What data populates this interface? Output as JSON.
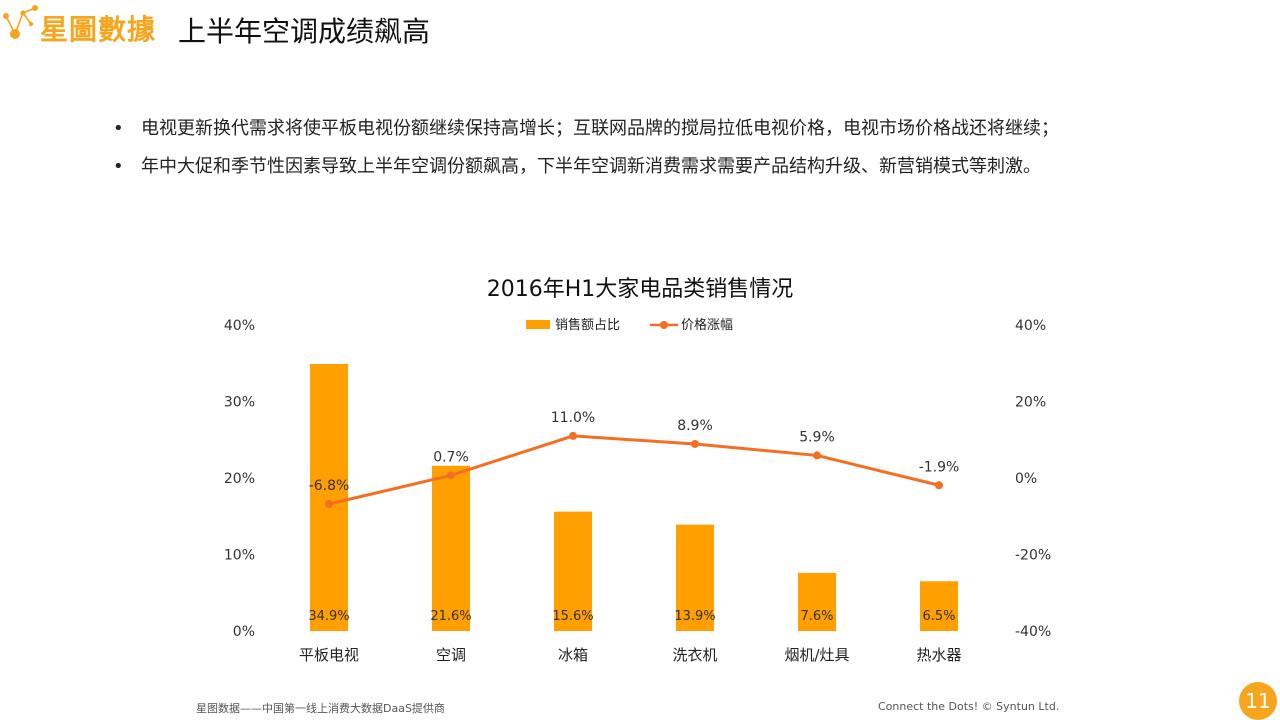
{
  "header": {
    "logo_text": "星圖數據",
    "title": "上半年空调成绩飙高"
  },
  "bullets": [
    "电视更新换代需求将使平板电视份额继续保持高增长；互联网品牌的搅局拉低电视价格，电视市场价格战还将继续；",
    "年中大促和季节性因素导致上半年空调份额飙高，下半年空调新消费需求需要产品结构升级、新营销模式等刺激。"
  ],
  "bullet_glyph": "•",
  "chart_data": {
    "type": "bar+line",
    "title": "2016年H1大家电品类销售情况",
    "categories": [
      "平板电视",
      "空调",
      "冰箱",
      "洗衣机",
      "烟机/灶具",
      "热水器"
    ],
    "series": [
      {
        "name": "销售额占比",
        "type": "bar",
        "axis": "left",
        "color": "#ff9f00",
        "values": [
          34.9,
          21.6,
          15.6,
          13.9,
          7.6,
          6.5
        ],
        "labels": [
          "34.9%",
          "21.6%",
          "15.6%",
          "13.9%",
          "7.6%",
          "6.5%"
        ]
      },
      {
        "name": "价格涨幅",
        "type": "line",
        "axis": "right",
        "color": "#f36f21",
        "values": [
          -6.8,
          0.7,
          11.0,
          8.9,
          5.9,
          -1.9
        ],
        "labels": [
          "-6.8%",
          "0.7%",
          "11.0%",
          "8.9%",
          "5.9%",
          "-1.9%"
        ]
      }
    ],
    "left_axis": {
      "ylim": [
        0,
        40
      ],
      "ticks": [
        "0%",
        "10%",
        "20%",
        "30%",
        "40%"
      ]
    },
    "right_axis": {
      "ylim": [
        -40,
        40
      ],
      "ticks": [
        "-40%",
        "-20%",
        "0%",
        "20%",
        "40%"
      ]
    },
    "legend_position": "top-center",
    "grid": false
  },
  "footer": {
    "left": "星图数据——中国第一线上消费大数据DaaS提供商",
    "right": "Connect the Dots!  © Syntun Ltd.",
    "page_number": "11"
  }
}
